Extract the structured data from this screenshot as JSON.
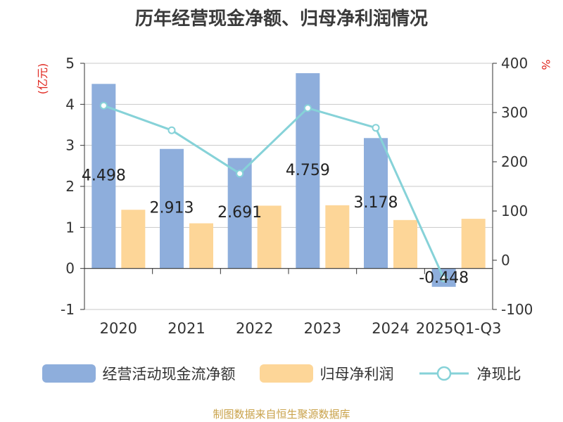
{
  "title": "历年经营现金净额、归母净利润情况",
  "source_note": "制图数据来自恒生聚源数据库",
  "colors": {
    "cash_flow": "#8eaedc",
    "net_profit": "#fdd698",
    "ratio": "#86d2d8",
    "axis_unit": "#e0261e",
    "grid": "#c8c8c8",
    "axis": "#333333"
  },
  "chart_data": {
    "type": "bar",
    "categories": [
      "2020",
      "2021",
      "2022",
      "2023",
      "2024",
      "2025Q1-Q3"
    ],
    "series": [
      {
        "name": "经营活动现金流净额",
        "type": "bar",
        "axis": "left",
        "values": [
          4.498,
          2.913,
          2.691,
          4.759,
          3.178,
          -0.448
        ]
      },
      {
        "name": "归母净利润",
        "type": "bar",
        "axis": "left",
        "values": [
          1.43,
          1.1,
          1.53,
          1.54,
          1.18,
          1.21
        ]
      },
      {
        "name": "净现比",
        "type": "line",
        "axis": "right",
        "values": [
          314,
          264,
          176,
          309,
          269,
          -37
        ]
      }
    ],
    "data_labels": [
      "4.498",
      "2.913",
      "2.691",
      "4.759",
      "3.178",
      "-0.448"
    ],
    "y_left": {
      "label": "(亿元)",
      "ylim": [
        -1,
        5
      ],
      "ticks": [
        "-1",
        "0",
        "1",
        "2",
        "3",
        "4",
        "5"
      ]
    },
    "y_right": {
      "label": "%",
      "ylim": [
        -100,
        400
      ],
      "ticks": [
        "-100",
        "0",
        "100",
        "200",
        "300",
        "400"
      ]
    },
    "grid": true,
    "legend_position": "bottom"
  }
}
